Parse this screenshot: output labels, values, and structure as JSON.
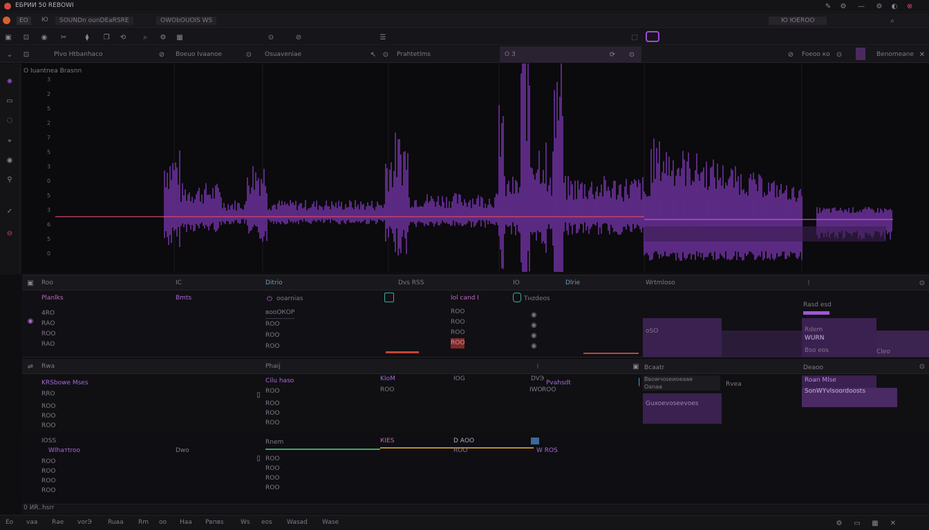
{
  "window": {
    "title": "ЕБРИИ 50   RЕВОWI"
  },
  "menubar": {
    "items": [
      "ЕО",
      "Ю",
      "SОUNDn ounDEaRSRE",
      "ОWОbОUOlS WS"
    ],
    "right_label": "Ю  ЮЕROO"
  },
  "toolbar": {
    "icons": [
      "folder-icon",
      "save-icon",
      "record-icon",
      "scissors-icon",
      "cut-icon",
      "copy-icon",
      "loop-icon",
      "zoom-icon",
      "settings-icon",
      "grid-icon",
      "snap-icon",
      "marker-icon",
      "mixer-icon",
      "plugin-icon"
    ]
  },
  "header": {
    "columns": [
      "Рlvo Нtbanhaco",
      "Boeuo Ivaanoe",
      "Osuaveniae",
      "Рrаhtetlms",
      "О З",
      "Foeoo кo",
      "Bеnomeane"
    ]
  },
  "waveform": {
    "track_label": "О  Iuantnea Brasnn",
    "db_ticks": [
      "3",
      "2",
      "5",
      "2",
      "7",
      "5",
      "3",
      "0",
      "5",
      "3",
      "6",
      "5",
      "0"
    ],
    "colors": {
      "wave": "#8a3ec8",
      "peak": "#c24fe0",
      "cursor": "#d9456a"
    }
  },
  "panel1": {
    "headers": [
      "Roo",
      "IС",
      "Ditrio",
      "Dvs RSS",
      "IО",
      "Dlrie",
      "Wrtmlоso"
    ],
    "row_label": "Рlanlks",
    "col_b": "Bmts",
    "col_c": "ооarnias",
    "col_e": "Iоl  саnd  I",
    "col_f": "Tнzdeos",
    "values_a": [
      "4RO",
      "RАО",
      "ROO",
      "RАО"
    ],
    "values_c": [
      "вооОКОР",
      "RОО",
      "RОО",
      "ROO"
    ],
    "values_e": [
      "RОО",
      "RОО",
      "ROO",
      "RОО"
    ],
    "right_items": [
      "Rasd esd",
      "Rdеm",
      "оSO",
      "WURN",
      "Bso eos",
      "Cleо"
    ]
  },
  "panel2": {
    "headers": [
      "Rwa",
      "Рhаij",
      "Вcaatr",
      "Dеaоo"
    ],
    "rows": [
      {
        "label": "KRSbowe Мses",
        "a": "Cilu hаso",
        "b": "KIоМ",
        "c": "IOG",
        "d": "DVЭ",
        "e": "Рvаhsdt"
      },
      {
        "label": "RRO",
        "a": "RОО",
        "b": "RОО",
        "c": "",
        "d": "IWO",
        "e": "ROO"
      }
    ],
    "sub_values": [
      "RОО",
      "RОО",
      "RОО"
    ],
    "right_items": [
      "Ввоwчоsеиoeaae",
      "Oanaa",
      "Guxoevoseevoes",
      "Rvea",
      "Roan Mlse",
      "SonWYvlsoordoosts"
    ]
  },
  "panel3": {
    "label": "IОSS",
    "row_label": "WIhaтtroo",
    "col_b": "Dwo",
    "col_c": "Rnem",
    "col_d": "КIЕS",
    "col_e": "D  AОО",
    "col_f": "W  ROS",
    "values": [
      "RОО",
      "RОО",
      "ROO",
      "RОО"
    ]
  },
  "statusbar": {
    "items": [
      "Еo",
      "vaa",
      "Rаe",
      "vorЭ",
      "Ruaa",
      "Rm",
      "оo",
      "Haa",
      "Рвпвs",
      "Ws",
      "eos",
      "Wasad",
      "Wase"
    ],
    "position": "0   ИR..hsrr"
  }
}
